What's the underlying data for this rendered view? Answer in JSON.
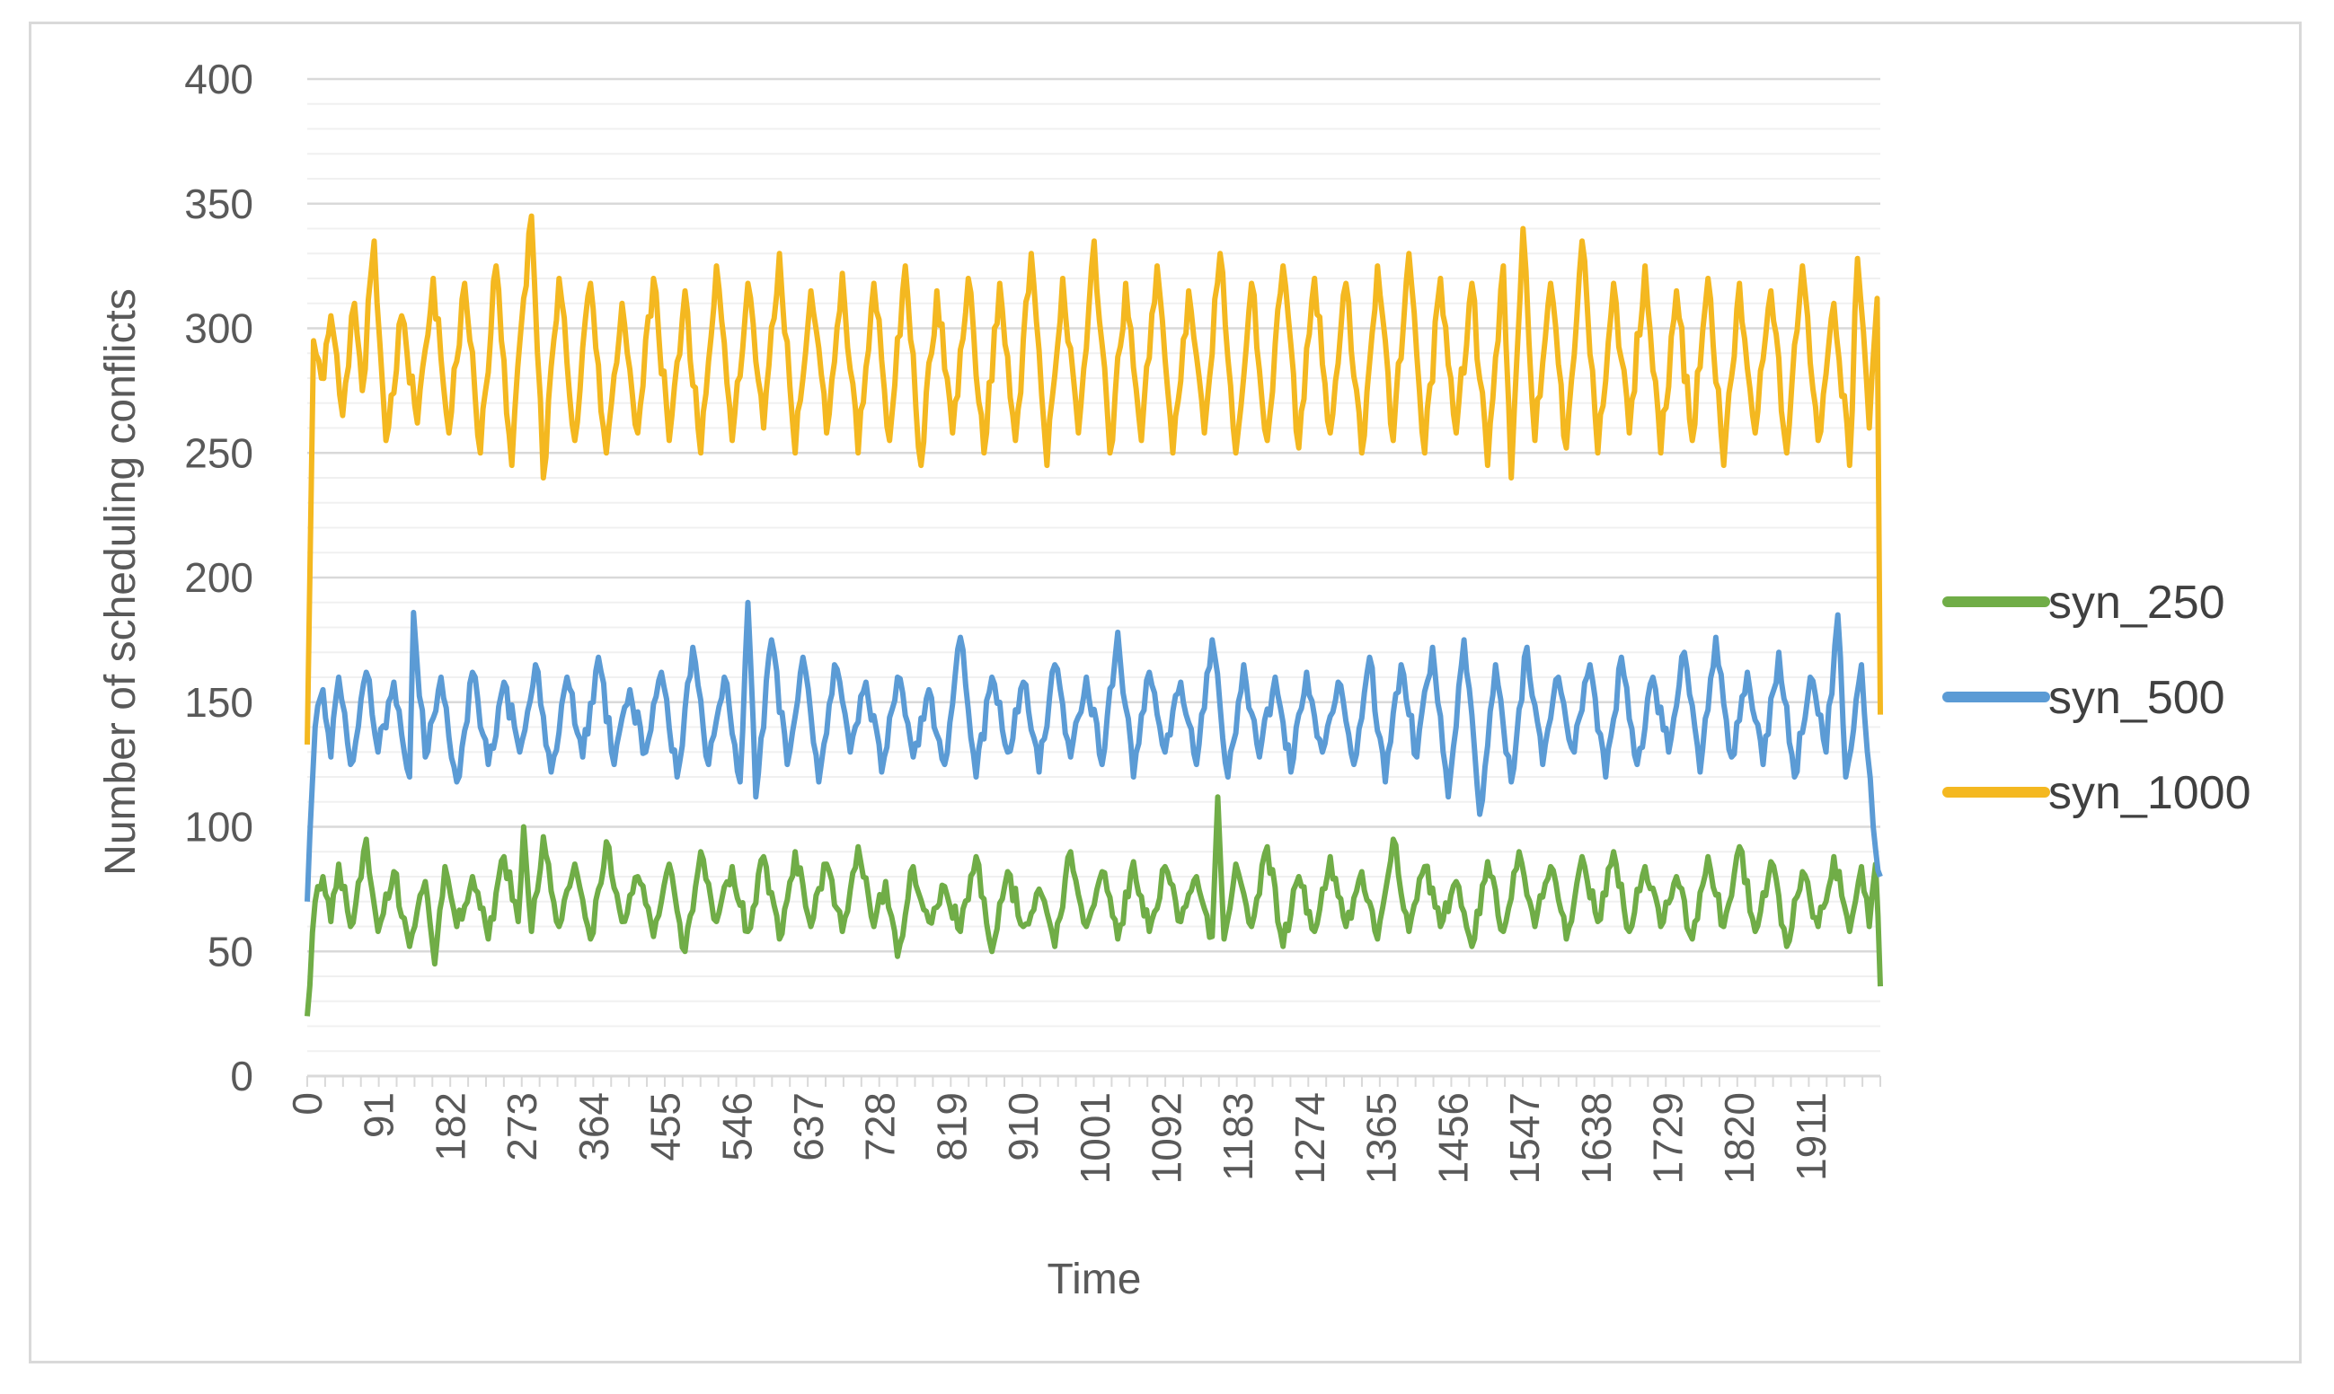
{
  "chart_data": {
    "type": "line",
    "title": "",
    "xlabel": "Time",
    "ylabel": "Number of scheduling conflicts",
    "ylim": [
      0,
      400
    ],
    "y_ticks": [
      0,
      50,
      100,
      150,
      200,
      250,
      300,
      350,
      400
    ],
    "xlim": [
      0,
      1999
    ],
    "x_tick_labels": [
      "0",
      "91",
      "182",
      "273",
      "364",
      "455",
      "546",
      "637",
      "728",
      "819",
      "910",
      "1001",
      "1092",
      "1183",
      "1274",
      "1365",
      "1456",
      "1547",
      "1638",
      "1729",
      "1820",
      "1911"
    ],
    "x_tick_values": [
      0,
      91,
      182,
      273,
      364,
      455,
      546,
      637,
      728,
      819,
      910,
      1001,
      1092,
      1183,
      1274,
      1365,
      1456,
      1547,
      1638,
      1729,
      1820,
      1911
    ],
    "grid": "horizontal",
    "legend_position": "right",
    "series": [
      {
        "name": "syn_250",
        "color": "#70ad47",
        "x": [
          0,
          10,
          20,
          30,
          40,
          55,
          75,
          90,
          110,
          130,
          150,
          162,
          175,
          190,
          210,
          230,
          250,
          268,
          275,
          285,
          300,
          320,
          340,
          360,
          380,
          400,
          420,
          440,
          460,
          480,
          500,
          520,
          540,
          560,
          580,
          600,
          620,
          640,
          660,
          680,
          700,
          720,
          735,
          750,
          770,
          790,
          810,
          830,
          850,
          870,
          890,
          910,
          930,
          950,
          970,
          990,
          1010,
          1030,
          1050,
          1070,
          1090,
          1110,
          1130,
          1150,
          1157,
          1165,
          1180,
          1200,
          1220,
          1240,
          1260,
          1280,
          1300,
          1320,
          1340,
          1360,
          1380,
          1400,
          1420,
          1440,
          1460,
          1480,
          1500,
          1520,
          1540,
          1560,
          1580,
          1600,
          1620,
          1640,
          1660,
          1680,
          1700,
          1720,
          1740,
          1760,
          1780,
          1800,
          1820,
          1840,
          1860,
          1880,
          1900,
          1920,
          1940,
          1960,
          1975,
          1985,
          1993,
          1999
        ],
        "y": [
          24,
          70,
          80,
          62,
          85,
          60,
          95,
          58,
          82,
          52,
          78,
          45,
          84,
          60,
          80,
          55,
          88,
          62,
          100,
          58,
          96,
          60,
          85,
          55,
          94,
          62,
          80,
          56,
          85,
          50,
          90,
          62,
          84,
          58,
          88,
          55,
          90,
          60,
          85,
          58,
          92,
          60,
          78,
          48,
          84,
          62,
          76,
          58,
          88,
          50,
          82,
          60,
          75,
          52,
          90,
          60,
          82,
          55,
          86,
          58,
          84,
          62,
          80,
          56,
          112,
          55,
          85,
          60,
          92,
          52,
          80,
          58,
          88,
          60,
          82,
          55,
          95,
          58,
          84,
          60,
          78,
          52,
          86,
          58,
          90,
          60,
          84,
          55,
          88,
          62,
          90,
          58,
          84,
          60,
          80,
          55,
          88,
          60,
          92,
          58,
          86,
          52,
          82,
          60,
          88,
          58,
          84,
          60,
          85,
          36
        ]
      },
      {
        "name": "syn_500",
        "color": "#5b9bd5",
        "x": [
          0,
          10,
          20,
          30,
          40,
          55,
          75,
          90,
          110,
          130,
          135,
          150,
          170,
          190,
          210,
          230,
          250,
          270,
          290,
          310,
          330,
          350,
          370,
          390,
          410,
          430,
          450,
          470,
          490,
          510,
          530,
          550,
          560,
          570,
          590,
          610,
          630,
          650,
          670,
          690,
          710,
          730,
          750,
          770,
          790,
          810,
          830,
          850,
          870,
          890,
          910,
          930,
          950,
          970,
          990,
          1010,
          1030,
          1050,
          1070,
          1090,
          1110,
          1130,
          1150,
          1170,
          1190,
          1210,
          1230,
          1250,
          1270,
          1290,
          1310,
          1330,
          1350,
          1370,
          1390,
          1410,
          1430,
          1450,
          1470,
          1490,
          1510,
          1530,
          1550,
          1570,
          1590,
          1610,
          1630,
          1650,
          1670,
          1690,
          1710,
          1730,
          1750,
          1770,
          1790,
          1810,
          1830,
          1850,
          1870,
          1890,
          1910,
          1930,
          1945,
          1955,
          1975,
          1990,
          1999
        ],
        "y": [
          70,
          140,
          155,
          128,
          160,
          125,
          162,
          130,
          158,
          120,
          186,
          128,
          160,
          118,
          162,
          125,
          158,
          130,
          165,
          122,
          160,
          128,
          168,
          125,
          155,
          130,
          162,
          120,
          172,
          125,
          160,
          118,
          190,
          112,
          175,
          125,
          168,
          118,
          165,
          130,
          158,
          122,
          160,
          128,
          155,
          125,
          176,
          120,
          160,
          130,
          158,
          122,
          165,
          128,
          160,
          125,
          178,
          120,
          162,
          130,
          158,
          125,
          175,
          120,
          165,
          128,
          160,
          122,
          162,
          130,
          158,
          125,
          168,
          118,
          165,
          128,
          172,
          112,
          175,
          105,
          165,
          118,
          172,
          125,
          160,
          130,
          165,
          120,
          168,
          125,
          160,
          130,
          170,
          122,
          176,
          128,
          162,
          125,
          170,
          120,
          160,
          130,
          185,
          120,
          165,
          100,
          80
        ]
      },
      {
        "name": "syn_1000",
        "color": "#f4b820",
        "x": [
          0,
          8,
          18,
          30,
          45,
          60,
          70,
          85,
          100,
          120,
          140,
          160,
          180,
          200,
          220,
          240,
          260,
          275,
          285,
          300,
          320,
          340,
          360,
          380,
          400,
          420,
          440,
          460,
          480,
          500,
          520,
          540,
          560,
          580,
          600,
          620,
          640,
          660,
          680,
          700,
          720,
          740,
          760,
          780,
          800,
          820,
          840,
          860,
          880,
          900,
          920,
          940,
          960,
          980,
          1000,
          1020,
          1040,
          1060,
          1080,
          1100,
          1120,
          1140,
          1160,
          1180,
          1200,
          1220,
          1240,
          1260,
          1280,
          1300,
          1320,
          1340,
          1360,
          1380,
          1400,
          1420,
          1440,
          1460,
          1480,
          1500,
          1520,
          1530,
          1545,
          1560,
          1580,
          1600,
          1620,
          1640,
          1660,
          1680,
          1700,
          1720,
          1740,
          1760,
          1780,
          1800,
          1820,
          1840,
          1860,
          1880,
          1900,
          1920,
          1940,
          1960,
          1970,
          1985,
          1995,
          1999
        ],
        "y": [
          133,
          295,
          280,
          305,
          265,
          310,
          275,
          335,
          255,
          305,
          262,
          320,
          258,
          318,
          250,
          325,
          245,
          312,
          345,
          240,
          320,
          255,
          318,
          250,
          310,
          258,
          320,
          255,
          315,
          250,
          325,
          255,
          318,
          260,
          330,
          250,
          315,
          258,
          322,
          250,
          318,
          255,
          325,
          245,
          315,
          258,
          320,
          250,
          318,
          255,
          330,
          245,
          320,
          258,
          335,
          250,
          318,
          255,
          325,
          250,
          315,
          258,
          330,
          250,
          318,
          255,
          325,
          252,
          320,
          258,
          318,
          250,
          325,
          255,
          330,
          250,
          320,
          258,
          318,
          245,
          325,
          240,
          340,
          255,
          318,
          252,
          335,
          250,
          318,
          258,
          325,
          250,
          315,
          255,
          320,
          245,
          318,
          258,
          315,
          250,
          325,
          255,
          310,
          245,
          328,
          260,
          312,
          145
        ]
      }
    ]
  }
}
